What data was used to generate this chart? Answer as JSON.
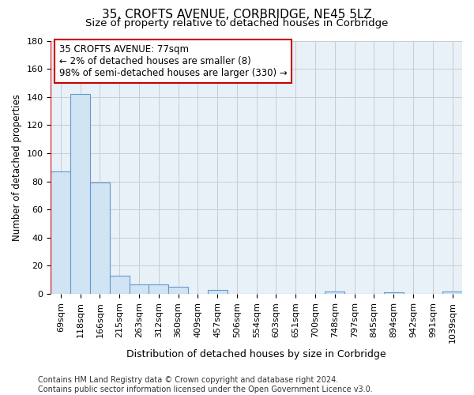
{
  "title": "35, CROFTS AVENUE, CORBRIDGE, NE45 5LZ",
  "subtitle": "Size of property relative to detached houses in Corbridge",
  "xlabel": "Distribution of detached houses by size in Corbridge",
  "ylabel": "Number of detached properties",
  "bar_values": [
    87,
    142,
    79,
    13,
    7,
    7,
    5,
    0,
    3,
    0,
    0,
    0,
    0,
    0,
    2,
    0,
    0,
    1,
    0,
    0,
    2
  ],
  "bar_labels": [
    "69sqm",
    "118sqm",
    "166sqm",
    "215sqm",
    "263sqm",
    "312sqm",
    "360sqm",
    "409sqm",
    "457sqm",
    "506sqm",
    "554sqm",
    "603sqm",
    "651sqm",
    "700sqm",
    "748sqm",
    "797sqm",
    "845sqm",
    "894sqm",
    "942sqm",
    "991sqm",
    "1039sqm"
  ],
  "bar_color": "#d0e4f4",
  "bar_edge_color": "#6699cc",
  "highlight_line_color": "#cc0000",
  "annotation_text_line1": "35 CROFTS AVENUE: 77sqm",
  "annotation_text_line2": "← 2% of detached houses are smaller (8)",
  "annotation_text_line3": "98% of semi-detached houses are larger (330) →",
  "annotation_box_color": "#ffffff",
  "annotation_box_edge_color": "#cc0000",
  "ylim": [
    0,
    180
  ],
  "yticks": [
    0,
    20,
    40,
    60,
    80,
    100,
    120,
    140,
    160,
    180
  ],
  "footer_text": "Contains HM Land Registry data © Crown copyright and database right 2024.\nContains public sector information licensed under the Open Government Licence v3.0.",
  "grid_color": "#cccccc",
  "bg_color": "#e8f0f8",
  "title_fontsize": 11,
  "subtitle_fontsize": 9.5,
  "tick_fontsize": 8,
  "xlabel_fontsize": 9,
  "ylabel_fontsize": 8.5,
  "annotation_fontsize": 8.5,
  "footer_fontsize": 7
}
